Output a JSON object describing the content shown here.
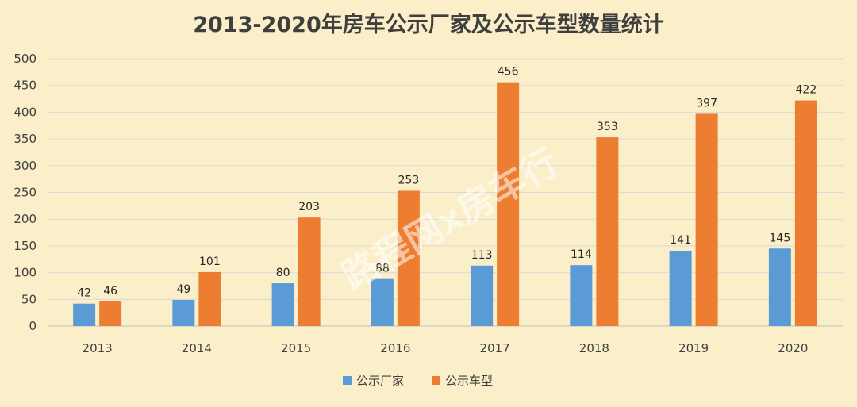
{
  "chart_data": {
    "type": "bar",
    "title": "2013-2020年房车公示厂家及公示车型数量统计",
    "categories": [
      "2013",
      "2014",
      "2015",
      "2016",
      "2017",
      "2018",
      "2019",
      "2020"
    ],
    "series": [
      {
        "name": "公示厂家",
        "color": "#5b9bd5",
        "values": [
          42,
          49,
          80,
          88,
          113,
          114,
          141,
          145
        ]
      },
      {
        "name": "公示车型",
        "color": "#ed7d31",
        "values": [
          46,
          101,
          203,
          253,
          456,
          353,
          397,
          422
        ]
      }
    ],
    "ylim": [
      0,
      500
    ],
    "yticks": [
      0,
      50,
      100,
      150,
      200,
      250,
      300,
      350,
      400,
      450,
      500
    ],
    "grid": true,
    "legend_position": "bottom-center",
    "xlabel": "",
    "ylabel": ""
  },
  "watermark": "路程网x房车行",
  "colors": {
    "background": "#fbefc9",
    "grid": "#d9d9d9",
    "axis": "#bfbfbf"
  }
}
